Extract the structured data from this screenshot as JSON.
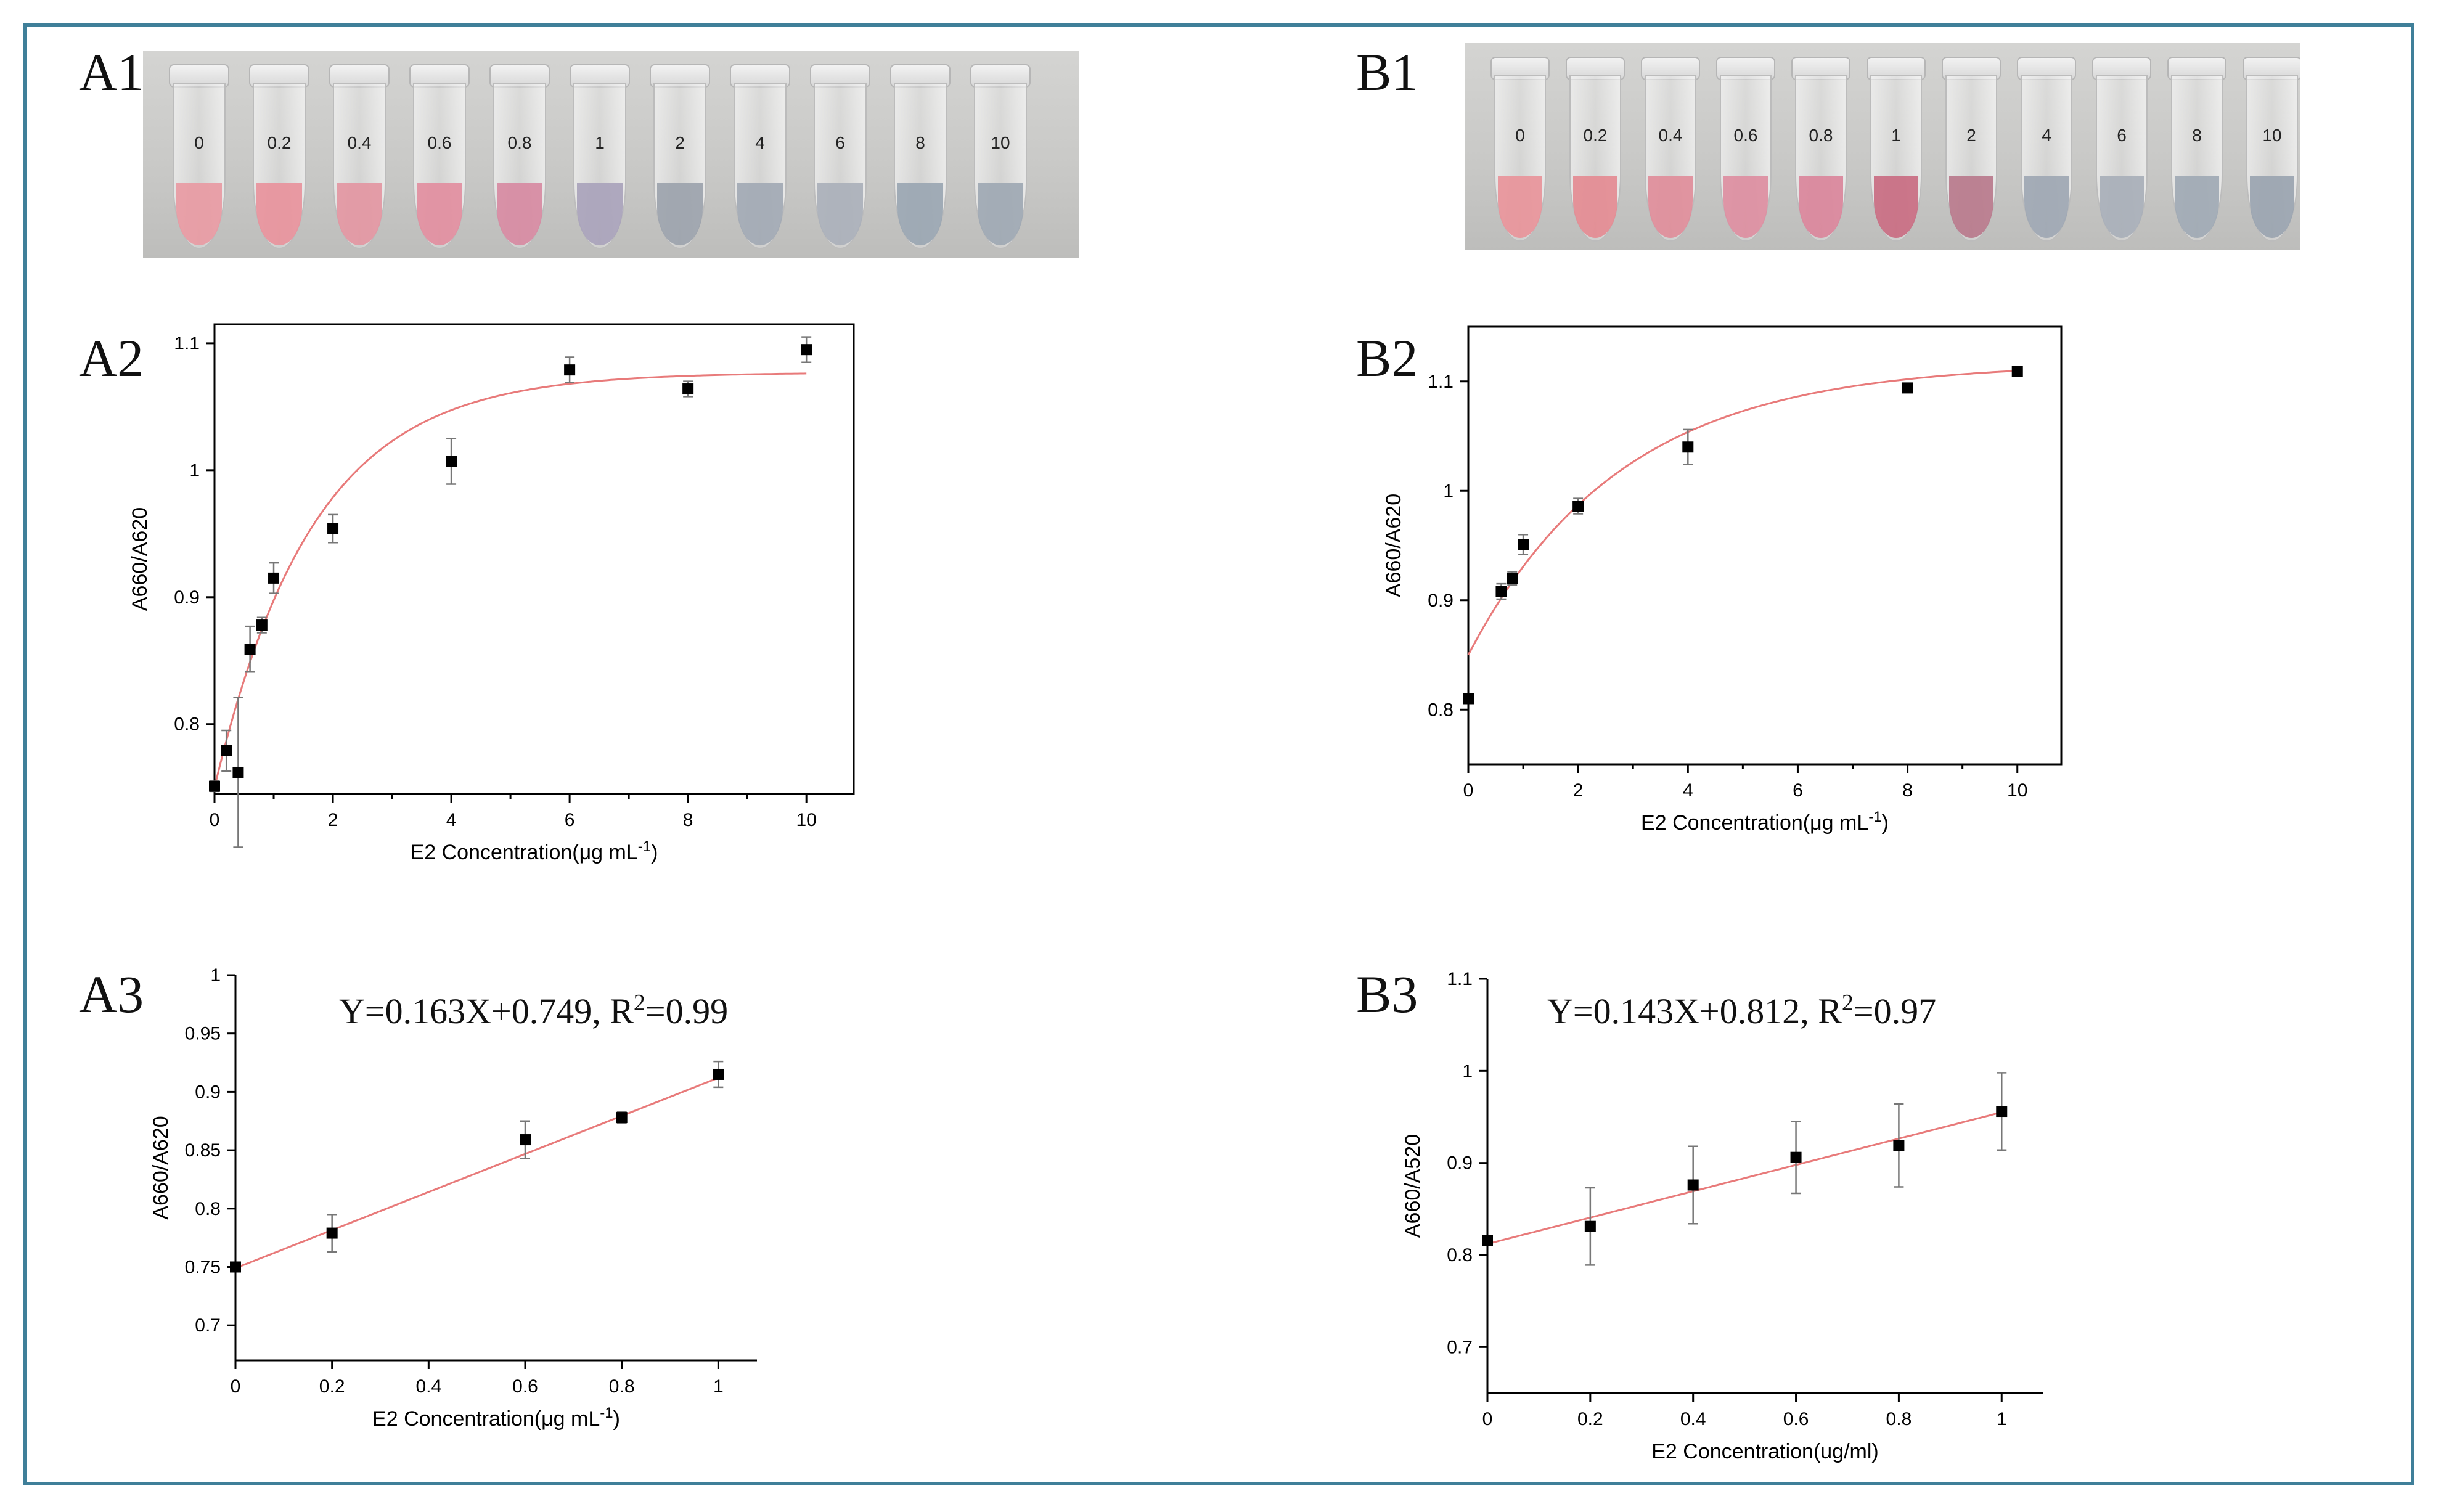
{
  "panels": {
    "A1": "A1",
    "A2": "A2",
    "A3": "A3",
    "B1": "B1",
    "B2": "B2",
    "B3": "B3"
  },
  "photos": {
    "A1": {
      "tubes": [
        {
          "label": "0",
          "color": "#e89aa3"
        },
        {
          "label": "0.2",
          "color": "#e8939c"
        },
        {
          "label": "0.4",
          "color": "#e396a2"
        },
        {
          "label": "0.6",
          "color": "#e28ea0"
        },
        {
          "label": "0.8",
          "color": "#d78aa2"
        },
        {
          "label": "1",
          "color": "#a9a3bb"
        },
        {
          "label": "2",
          "color": "#9ca3ad"
        },
        {
          "label": "4",
          "color": "#a2a9b4"
        },
        {
          "label": "6",
          "color": "#aab0ba"
        },
        {
          "label": "8",
          "color": "#9aa6b2"
        },
        {
          "label": "10",
          "color": "#9ea8b3"
        }
      ]
    },
    "B1": {
      "tubes": [
        {
          "label": "0",
          "color": "#e8949a"
        },
        {
          "label": "0.2",
          "color": "#e48b93"
        },
        {
          "label": "0.4",
          "color": "#df8d9a"
        },
        {
          "label": "0.6",
          "color": "#dd8ea1"
        },
        {
          "label": "0.8",
          "color": "#da869b"
        },
        {
          "label": "1",
          "color": "#c96c82"
        },
        {
          "label": "2",
          "color": "#b97a8c"
        },
        {
          "label": "4",
          "color": "#9ea7b3"
        },
        {
          "label": "6",
          "color": "#a8afb9"
        },
        {
          "label": "8",
          "color": "#a0a9b4"
        },
        {
          "label": "10",
          "color": "#9aa4b0"
        }
      ]
    }
  },
  "chart_data": [
    {
      "id": "A2",
      "type": "scatter",
      "xlabel": "E2 Concentration(μg mL",
      "xlabel_sup": "-1",
      "xlabel_close": ")",
      "ylabel": "A660/A620",
      "xlim": [
        0,
        10.8
      ],
      "ylim": [
        0.745,
        1.115
      ],
      "xticks": [
        0,
        2,
        4,
        6,
        8,
        10
      ],
      "yticks": [
        0.8,
        0.9,
        1,
        1.1
      ],
      "ytick_labels": [
        "0.8",
        "0.9",
        "1",
        "1.1"
      ],
      "x": [
        0,
        0.2,
        0.4,
        0.6,
        0.8,
        1,
        2,
        4,
        6,
        8,
        10
      ],
      "y": [
        0.751,
        0.779,
        0.762,
        0.859,
        0.878,
        0.915,
        0.954,
        1.007,
        1.079,
        1.064,
        1.095
      ],
      "err": [
        0.004,
        0.016,
        0.059,
        0.018,
        0.006,
        0.012,
        0.011,
        0.018,
        0.01,
        0.006,
        0.01
      ],
      "fit": {
        "kind": "exp",
        "a": 1.077,
        "b": 0.327,
        "k": 0.6
      }
    },
    {
      "id": "B2",
      "type": "scatter",
      "xlabel": "E2 Concentration(μg mL",
      "xlabel_sup": "-1",
      "xlabel_close": ")",
      "ylabel": "A660/A620",
      "xlim": [
        0,
        10.8
      ],
      "ylim": [
        0.75,
        1.15
      ],
      "xticks": [
        0,
        2,
        4,
        6,
        8,
        10
      ],
      "yticks": [
        0.8,
        0.9,
        1,
        1.1
      ],
      "ytick_labels": [
        "0.8",
        "0.9",
        "1",
        "1.1"
      ],
      "x": [
        0,
        0.6,
        0.8,
        1,
        2,
        4,
        8,
        10
      ],
      "y": [
        0.81,
        0.908,
        0.92,
        0.951,
        0.986,
        1.04,
        1.094,
        1.109
      ],
      "err": [
        0,
        0.007,
        0.006,
        0.009,
        0.007,
        0.016,
        0.003,
        0.003
      ],
      "fit": {
        "kind": "exp",
        "a": 1.117,
        "b": 0.267,
        "k": 0.36
      }
    },
    {
      "id": "A3",
      "type": "scatter",
      "equation": "Y=0.163X+0.749, R",
      "equation_sup": "2",
      "equation_tail": "=0.99",
      "xlabel": "E2 Concentration(μg mL",
      "xlabel_sup": "-1",
      "xlabel_close": ")",
      "ylabel": "A660/A620",
      "xlim": [
        0,
        1.08
      ],
      "ylim": [
        0.67,
        1.0
      ],
      "xticks": [
        0,
        0.2,
        0.4,
        0.6,
        0.8,
        1
      ],
      "xtick_labels": [
        "0",
        "0.2",
        "0.4",
        "0.6",
        "0.8",
        "1"
      ],
      "yticks": [
        0.7,
        0.75,
        0.8,
        0.85,
        0.9,
        0.95,
        1
      ],
      "ytick_labels": [
        "0.7",
        "0.75",
        "0.8",
        "0.85",
        "0.9",
        "0.95",
        "1"
      ],
      "x": [
        0,
        0.2,
        0.6,
        0.8,
        1
      ],
      "y": [
        0.75,
        0.779,
        0.859,
        0.878,
        0.915
      ],
      "err": [
        0,
        0.016,
        0.016,
        0.005,
        0.011
      ],
      "fit": {
        "kind": "linear",
        "m": 0.163,
        "c": 0.749
      }
    },
    {
      "id": "B3",
      "type": "scatter",
      "equation": "Y=0.143X+0.812, R",
      "equation_sup": "2",
      "equation_tail": "=0.97",
      "xlabel": "E2 Concentration(ug/ml)",
      "xlabel_sup": "",
      "xlabel_close": "",
      "ylabel": "A660/A520",
      "xlim": [
        0,
        1.08
      ],
      "ylim": [
        0.65,
        1.1
      ],
      "xticks": [
        0,
        0.2,
        0.4,
        0.6,
        0.8,
        1
      ],
      "xtick_labels": [
        "0",
        "0.2",
        "0.4",
        "0.6",
        "0.8",
        "1"
      ],
      "yticks": [
        0.7,
        0.8,
        0.9,
        1,
        1.1
      ],
      "ytick_labels": [
        "0.7",
        "0.8",
        "0.9",
        "1",
        "1.1"
      ],
      "x": [
        0,
        0.2,
        0.4,
        0.6,
        0.8,
        1
      ],
      "y": [
        0.816,
        0.831,
        0.876,
        0.906,
        0.919,
        0.956
      ],
      "err": [
        0,
        0.042,
        0.042,
        0.039,
        0.045,
        0.042
      ],
      "fit": {
        "kind": "linear",
        "m": 0.143,
        "c": 0.812
      }
    }
  ],
  "colors": {
    "frame": "#3f7f99",
    "fit": "#e87a7a",
    "error": "#777777",
    "marker": "#000000"
  }
}
